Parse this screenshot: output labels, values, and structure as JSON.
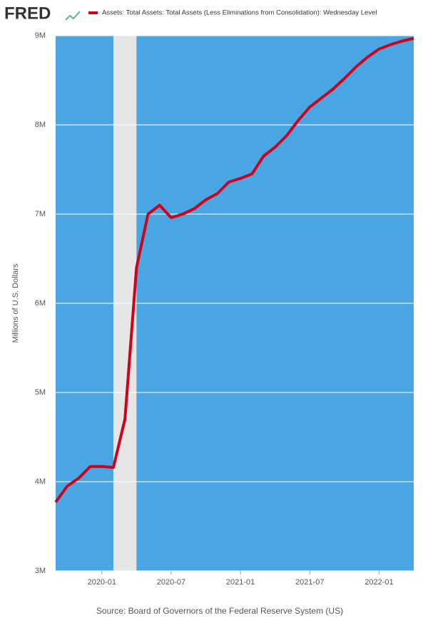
{
  "brand": "FRED",
  "chart_data": {
    "type": "line",
    "y_label": "Millions of U.S. Dollars",
    "source": "Source: Board of Governors of the Federal Reserve System (US)",
    "x": [
      "2019-09",
      "2019-10",
      "2019-11",
      "2019-12",
      "2020-01",
      "2020-02",
      "2020-03",
      "2020-04",
      "2020-05",
      "2020-06",
      "2020-07",
      "2020-08",
      "2020-09",
      "2020-10",
      "2020-11",
      "2020-12",
      "2021-01",
      "2021-02",
      "2021-03",
      "2021-04",
      "2021-05",
      "2021-06",
      "2021-07",
      "2021-08",
      "2021-09",
      "2021-10",
      "2021-11",
      "2021-12",
      "2022-01",
      "2022-02",
      "2022-03",
      "2022-04"
    ],
    "series": [
      {
        "name": "Assets: Total Assets: Total Assets (Less Eliminations from Consolidation): Wednesday Level",
        "color": "#d0021b",
        "values": [
          3770000,
          3950000,
          4040000,
          4170000,
          4170000,
          4160000,
          4700000,
          6400000,
          7000000,
          7100000,
          6960000,
          7000000,
          7060000,
          7160000,
          7230000,
          7360000,
          7400000,
          7450000,
          7650000,
          7750000,
          7880000,
          8050000,
          8200000,
          8300000,
          8400000,
          8520000,
          8650000,
          8760000,
          8850000,
          8900000,
          8940000,
          8970000
        ]
      }
    ],
    "xlim": [
      "2019-09",
      "2022-04"
    ],
    "xticks": [
      "2020-01",
      "2020-07",
      "2021-01",
      "2021-07",
      "2022-01"
    ],
    "ylim": [
      3000000,
      9000000
    ],
    "yticks": [
      {
        "value": 3000000,
        "label": "3M"
      },
      {
        "value": 4000000,
        "label": "4M"
      },
      {
        "value": 5000000,
        "label": "5M"
      },
      {
        "value": 6000000,
        "label": "6M"
      },
      {
        "value": 7000000,
        "label": "7M"
      },
      {
        "value": 8000000,
        "label": "8M"
      },
      {
        "value": 9000000,
        "label": "9M"
      }
    ],
    "recession": [
      "2020-02",
      "2020-04"
    ],
    "background": "#4aa6e2",
    "grid": true
  }
}
